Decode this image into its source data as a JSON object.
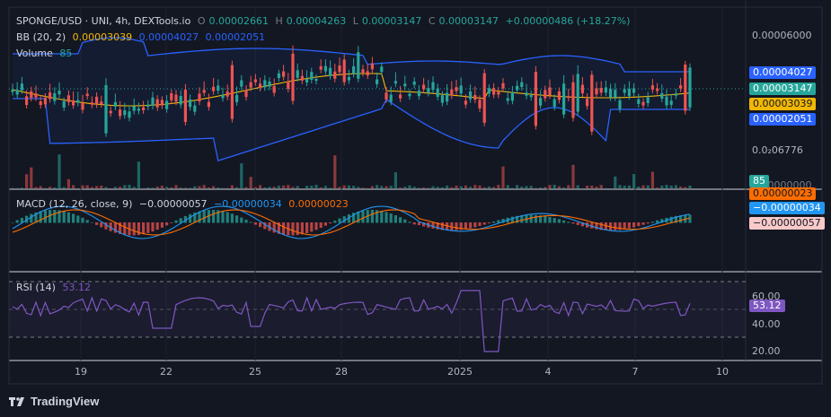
{
  "header": {
    "symbol": "SPONGE/USD · UNI, 4h, DEXTools.io",
    "o_label": "O",
    "o_val": "0.00002661",
    "h_label": "H",
    "h_val": "0.00004263",
    "l_label": "L",
    "l_val": "0.00003147",
    "c_label": "C",
    "c_val": "0.00003147",
    "change": "+0.00000486 (+18.27%)"
  },
  "bb_legend": {
    "name": "BB (20, 2)",
    "basis": "0.00003039",
    "upper": "0.00004027",
    "lower": "0.00002051"
  },
  "volume_legend": {
    "name": "Volume",
    "value": "85"
  },
  "macd_legend": {
    "name": "MACD (12, 26, close, 9)",
    "hist": "−0.00000057",
    "macd": "−0.00000034",
    "signal": "0.00000023"
  },
  "rsi_legend": {
    "name": "RSI (14)",
    "value": "53.12"
  },
  "price_axis": {
    "top": "0.00006000",
    "bottom": "0.0₂06776",
    "clip": "0.00000000"
  },
  "rsi_axis": {
    "l60": "60.00",
    "l40": "40.00",
    "l20": "20.00"
  },
  "tags": {
    "upper": "0.00004027",
    "close": "0.00003147",
    "basis": "0.00003039",
    "lower": "0.00002051",
    "volume": "85",
    "signal": "0.00000023",
    "macd": "−0.00000034",
    "hist": "−0.00000057",
    "rsi": "53.12"
  },
  "x_axis": [
    "19",
    "22",
    "25",
    "28",
    "2025",
    "4",
    "7",
    "10"
  ],
  "brand": "TradingView",
  "colors": {
    "up": "#26a69a",
    "down": "#ef5350",
    "bb": "#2962ff",
    "basis": "#f2b705",
    "rsi": "#7e57c2",
    "background": "#131722"
  },
  "chart_data": [
    {
      "type": "candlestick",
      "title": "SPONGE/USD · UNI, 4h, DEXTools.io",
      "overlay": "Bollinger Bands (20, 2)",
      "y_ticks": [
        "0.00006000",
        "0.0₂06776"
      ],
      "x_ticks": [
        "19",
        "22",
        "25",
        "28",
        "2025",
        "4",
        "7",
        "10"
      ],
      "last": {
        "open": 2.661e-05,
        "high": 4.263e-05,
        "low": 3.147e-05,
        "close": 3.147e-05
      },
      "bb_last": {
        "basis": 3.039e-05,
        "upper": 4.027e-05,
        "lower": 2.051e-05
      }
    },
    {
      "type": "bar",
      "name": "Volume",
      "last": 85
    },
    {
      "type": "line",
      "name": "MACD (12, 26, close, 9)",
      "last": {
        "histogram": -5.7e-07,
        "macd": -3.4e-07,
        "signal": 2.3e-07
      }
    },
    {
      "type": "line",
      "name": "RSI (14)",
      "y_ticks": [
        60,
        40,
        20
      ],
      "last": 53.12
    }
  ]
}
